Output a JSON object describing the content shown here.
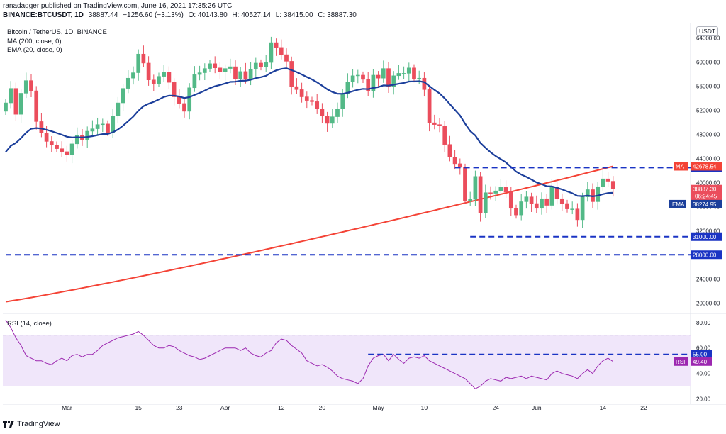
{
  "header": {
    "line1": "ranadagger published on TradingView.com, June 16, 2021 17:35:26 UTC",
    "symbol": "BINANCE:BTCUSDT, 1D",
    "last": "38887.44",
    "change": "−1256.60 (−3.13%)",
    "open": "O: 40143.80",
    "high": "H: 40527.14",
    "low": "L: 38415.00",
    "close": "C: 38887.30"
  },
  "legend": {
    "title": "Bitcoin / TetherUS, 1D, BINANCE",
    "ma": "MA (200, close, 0)",
    "ema": "EMA (20, close, 0)",
    "rsi": "RSI (14, close)"
  },
  "currency": "USDT",
  "brand": "TradingView",
  "colors": {
    "up": "#53b987",
    "down": "#eb4d5c",
    "ma": "#f44336",
    "ema": "#1c3f9b",
    "rsi": "#9c27b0",
    "level": "#1a34c4",
    "rsi_band": "#f0e6fa"
  },
  "chart_data": [
    {
      "type": "candlestick",
      "title": "Bitcoin / TetherUS, 1D, BINANCE",
      "y_ticks": [
        20000,
        24000,
        28000,
        32000,
        36000,
        40000,
        44000,
        48000,
        52000,
        56000,
        60000,
        64000
      ],
      "y_tick_labels": [
        "20000.00",
        "24000.00",
        "28000.00",
        "32000.00",
        "36000.00",
        "40000.00",
        "44000.00",
        "48000.00",
        "52000.00",
        "56000.00",
        "60000.00",
        "64000.00"
      ],
      "ylim": [
        18500,
        66500
      ],
      "x_labels": [
        {
          "label": "Mar",
          "index": 12
        },
        {
          "label": "15",
          "index": 26
        },
        {
          "label": "23",
          "index": 34
        },
        {
          "label": "Apr",
          "index": 43
        },
        {
          "label": "12",
          "index": 54
        },
        {
          "label": "20",
          "index": 62
        },
        {
          "label": "May",
          "index": 73
        },
        {
          "label": "10",
          "index": 82
        },
        {
          "label": "24",
          "index": 96
        },
        {
          "label": "Jun",
          "index": 104
        },
        {
          "label": "14",
          "index": 117
        },
        {
          "label": "22",
          "index": 125
        }
      ],
      "closes": [
        53200,
        55600,
        51300,
        54800,
        56900,
        55200,
        50100,
        48200,
        46800,
        46200,
        45600,
        45100,
        44600,
        46400,
        47800,
        47100,
        48500,
        48900,
        49600,
        49700,
        48300,
        51000,
        53200,
        55600,
        57300,
        58200,
        61300,
        59800,
        57000,
        56400,
        57600,
        58300,
        56600,
        54200,
        53100,
        51800,
        55700,
        57900,
        58200,
        58900,
        59700,
        59000,
        58300,
        58900,
        59200,
        57200,
        58400,
        57100,
        58800,
        59800,
        59200,
        59900,
        63200,
        62400,
        61200,
        60100,
        55900,
        55400,
        54200,
        53600,
        53400,
        52200,
        51000,
        49800,
        50900,
        52200,
        54700,
        56700,
        57700,
        57800,
        57100,
        55200,
        57800,
        57300,
        58900,
        55900,
        57700,
        58100,
        58100,
        59000,
        57200,
        57300,
        55400,
        49900,
        49600,
        49400,
        46300,
        44200,
        43100,
        42500,
        37000,
        37200,
        41000,
        34900,
        38300,
        38200,
        38600,
        39200,
        38400,
        35700,
        34600,
        36800,
        37600,
        36500,
        35700,
        37300,
        36200,
        39200,
        37300,
        36500,
        35600,
        35600,
        33800,
        37600,
        38800,
        36800,
        39300,
        40600,
        40200,
        38887
      ],
      "opens_first": 51800,
      "highs_extra": 1500,
      "lows_extra": 1500,
      "ma200": {
        "name": "MA",
        "start": 20200,
        "end": 42678.54,
        "label": "42678.54"
      },
      "ema20": {
        "name": "EMA",
        "label": "38274.95"
      },
      "price_label": "38887.30",
      "countdown": "06:24:45",
      "levels": [
        {
          "value": 42451.67,
          "label": "42451.67",
          "from_index": 88
        },
        {
          "value": 31000.0,
          "label": "31000.00",
          "from_index": 91
        },
        {
          "value": 28000.0,
          "label": "28000.00",
          "from_index": 0
        }
      ]
    },
    {
      "type": "line",
      "title": "RSI (14, close)",
      "y_ticks": [
        20,
        40,
        60,
        80
      ],
      "y_tick_labels": [
        "20.00",
        "40.00",
        "60.00",
        "80.00"
      ],
      "ylim": [
        17,
        86
      ],
      "band": [
        30,
        70
      ],
      "values": [
        82,
        76,
        68,
        62,
        54,
        52,
        50,
        50,
        48,
        47,
        50,
        52,
        50,
        54,
        55,
        53,
        55,
        55,
        58,
        62,
        64,
        66,
        68,
        69,
        70,
        71,
        73,
        70,
        66,
        62,
        60,
        60,
        62,
        61,
        58,
        56,
        54,
        53,
        51,
        52,
        54,
        56,
        58,
        60,
        60,
        60,
        58,
        60,
        56,
        54,
        53,
        56,
        58,
        64,
        67,
        66,
        62,
        59,
        56,
        50,
        48,
        46,
        47,
        45,
        42,
        38,
        36,
        35,
        34,
        32,
        36,
        46,
        52,
        54,
        55,
        50,
        55,
        51,
        48,
        52,
        53,
        52,
        54,
        50,
        48,
        46,
        44,
        42,
        40,
        38,
        36,
        32,
        28,
        30,
        34,
        36,
        35,
        34,
        37,
        36,
        37,
        38,
        36,
        38,
        37,
        36,
        35,
        40,
        42,
        40,
        39,
        38,
        36,
        40,
        43,
        40,
        46,
        50,
        52,
        49.4
      ],
      "rsi_label": "49.40",
      "level": {
        "value": 55,
        "label": "55.00",
        "from_index": 71
      }
    }
  ]
}
